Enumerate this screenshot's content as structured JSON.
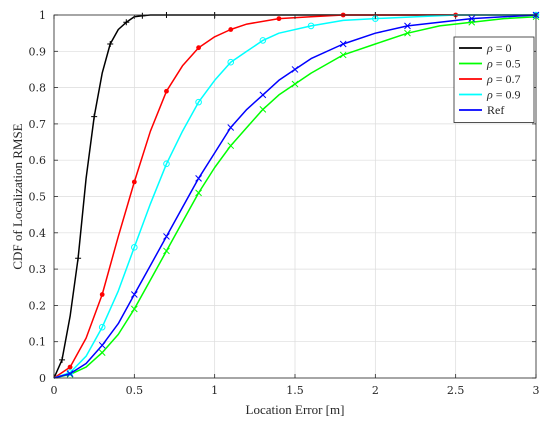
{
  "chart_data": {
    "type": "line",
    "xlabel": "Location Error [m]",
    "ylabel": "CDF of Localization RMSE",
    "xlim": [
      0,
      3
    ],
    "ylim": [
      0,
      1
    ],
    "xticks": [
      "0",
      "0.5",
      "1",
      "1.5",
      "2",
      "2.5",
      "3"
    ],
    "yticks": [
      "0",
      "0.1",
      "0.2",
      "0.3",
      "0.4",
      "0.5",
      "0.6",
      "0.7",
      "0.8",
      "0.9",
      "1"
    ],
    "grid": true,
    "legend_position": "top-right",
    "series": [
      {
        "name": "ρ = 0",
        "name_symbol": "ρ",
        "name_rest": " = 0",
        "color": "#000000",
        "marker": "plus",
        "x": [
          0,
          0.05,
          0.1,
          0.15,
          0.2,
          0.25,
          0.3,
          0.35,
          0.4,
          0.45,
          0.5,
          0.55,
          0.6,
          0.7,
          0.8,
          1.0,
          1.5,
          2.0,
          2.5,
          3.0
        ],
        "y": [
          0,
          0.05,
          0.17,
          0.33,
          0.55,
          0.72,
          0.84,
          0.92,
          0.96,
          0.98,
          0.995,
          0.998,
          1.0,
          1.0,
          1.0,
          1.0,
          1.0,
          1.0,
          1.0,
          1.0
        ]
      },
      {
        "name": "ρ = 0.5",
        "name_symbol": "ρ",
        "name_rest": " = 0.5",
        "color": "#00ff00",
        "marker": "x",
        "x": [
          0,
          0.1,
          0.2,
          0.3,
          0.4,
          0.5,
          0.6,
          0.7,
          0.8,
          0.9,
          1.0,
          1.1,
          1.2,
          1.3,
          1.4,
          1.5,
          1.6,
          1.8,
          2.0,
          2.2,
          2.4,
          2.6,
          2.8,
          3.0
        ],
        "y": [
          0,
          0.01,
          0.03,
          0.07,
          0.12,
          0.19,
          0.27,
          0.35,
          0.43,
          0.51,
          0.58,
          0.64,
          0.69,
          0.74,
          0.78,
          0.81,
          0.84,
          0.89,
          0.92,
          0.95,
          0.97,
          0.98,
          0.99,
          0.995
        ]
      },
      {
        "name": "ρ = 0.7",
        "name_symbol": "ρ",
        "name_rest": " = 0.7",
        "color": "#ff0000",
        "marker": "dot",
        "x": [
          0,
          0.1,
          0.2,
          0.3,
          0.4,
          0.5,
          0.6,
          0.7,
          0.8,
          0.9,
          1.0,
          1.1,
          1.2,
          1.4,
          1.6,
          1.8,
          2.0,
          2.5,
          3.0
        ],
        "y": [
          0,
          0.03,
          0.11,
          0.23,
          0.39,
          0.54,
          0.68,
          0.79,
          0.86,
          0.91,
          0.94,
          0.96,
          0.975,
          0.99,
          0.995,
          1.0,
          1.0,
          1.0,
          1.0
        ]
      },
      {
        "name": "ρ = 0.9",
        "name_symbol": "ρ",
        "name_rest": " = 0.9",
        "color": "#00ffff",
        "marker": "circle",
        "x": [
          0,
          0.1,
          0.2,
          0.3,
          0.4,
          0.5,
          0.6,
          0.7,
          0.8,
          0.9,
          1.0,
          1.1,
          1.2,
          1.3,
          1.4,
          1.6,
          1.8,
          2.0,
          2.5,
          3.0
        ],
        "y": [
          0,
          0.015,
          0.06,
          0.14,
          0.24,
          0.36,
          0.48,
          0.59,
          0.68,
          0.76,
          0.82,
          0.87,
          0.9,
          0.93,
          0.95,
          0.97,
          0.985,
          0.99,
          1.0,
          1.0
        ]
      },
      {
        "name": "Ref",
        "name_symbol": "",
        "name_rest": "Ref",
        "color": "#0000ff",
        "marker": "x",
        "x": [
          0,
          0.1,
          0.2,
          0.3,
          0.4,
          0.5,
          0.6,
          0.7,
          0.8,
          0.9,
          1.0,
          1.1,
          1.2,
          1.3,
          1.4,
          1.5,
          1.6,
          1.8,
          2.0,
          2.2,
          2.4,
          2.6,
          2.8,
          3.0
        ],
        "y": [
          0,
          0.012,
          0.04,
          0.09,
          0.15,
          0.23,
          0.31,
          0.39,
          0.47,
          0.55,
          0.62,
          0.69,
          0.74,
          0.78,
          0.82,
          0.85,
          0.88,
          0.92,
          0.95,
          0.97,
          0.98,
          0.99,
          0.995,
          1.0
        ]
      }
    ]
  }
}
